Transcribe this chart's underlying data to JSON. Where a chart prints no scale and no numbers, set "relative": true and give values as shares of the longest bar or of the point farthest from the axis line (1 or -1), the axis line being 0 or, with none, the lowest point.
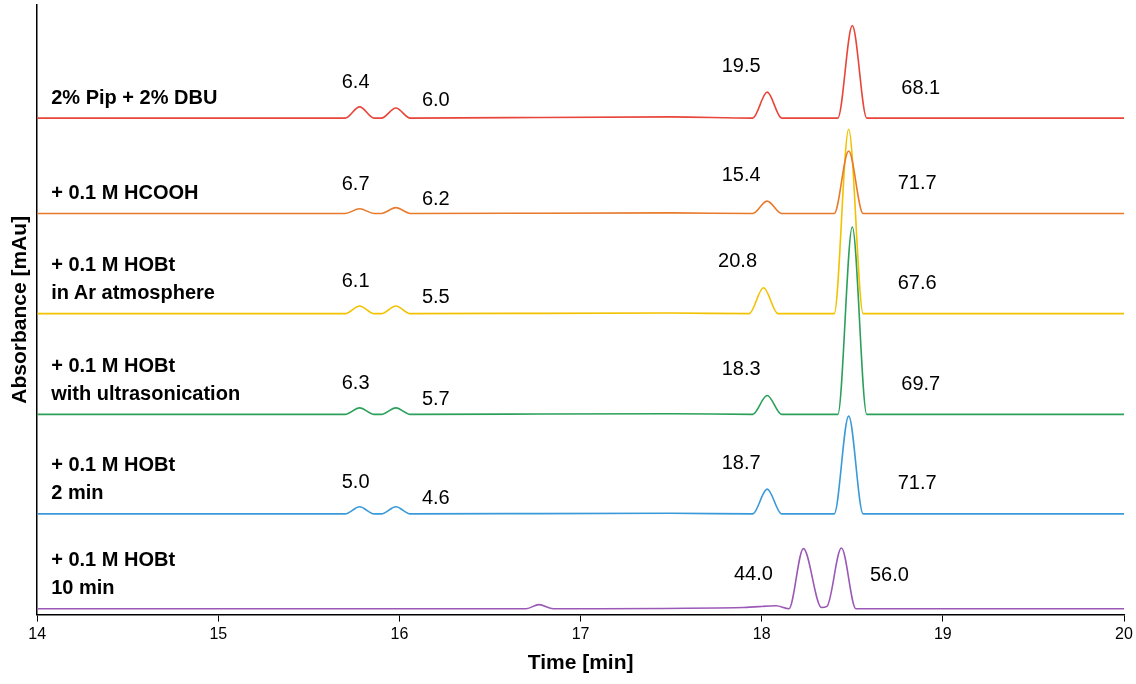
{
  "chart_data": {
    "type": "line",
    "relative": true,
    "xlabel": "Time [min]",
    "ylabel": "Absorbance [mAu]",
    "xlim": [
      14,
      20
    ],
    "xticks": [
      14,
      15,
      16,
      17,
      18,
      19,
      20
    ],
    "grid": false,
    "legend": false,
    "marker": "none",
    "series": [
      {
        "name": "2% Pip + 2% DBU",
        "color": "#e8463a",
        "x": [
          14,
          15.7,
          15.78,
          15.86,
          15.9,
          15.98,
          16.06,
          17.5,
          17.95,
          18.03,
          18.11,
          18.42,
          18.5,
          18.58,
          20
        ],
        "values": [
          0.843,
          0.843,
          0.862,
          0.843,
          0.843,
          0.86,
          0.843,
          0.845,
          0.843,
          0.887,
          0.843,
          0.843,
          1.0,
          0.843,
          0.843
        ]
      },
      {
        "name": "+ 0.1 M HCOOH",
        "color": "#e87a2c",
        "x": [
          14,
          15.7,
          15.78,
          15.86,
          15.9,
          15.98,
          16.06,
          17.5,
          17.95,
          18.03,
          18.11,
          18.4,
          18.48,
          18.56,
          20
        ],
        "values": [
          0.681,
          0.681,
          0.689,
          0.681,
          0.681,
          0.691,
          0.681,
          0.682,
          0.681,
          0.702,
          0.681,
          0.681,
          0.787,
          0.681,
          0.681
        ]
      },
      {
        "name": "+ 0.1 M HOBt\nin Ar atmosphere",
        "color": "#f2c200",
        "x": [
          14,
          15.7,
          15.78,
          15.86,
          15.9,
          15.98,
          16.06,
          17.5,
          17.93,
          18.01,
          18.09,
          18.4,
          18.48,
          18.56,
          20
        ],
        "values": [
          0.511,
          0.511,
          0.524,
          0.511,
          0.511,
          0.524,
          0.511,
          0.512,
          0.511,
          0.555,
          0.511,
          0.511,
          0.824,
          0.511,
          0.511
        ]
      },
      {
        "name": "+ 0.1 M HOBt\nwith ultrasonication",
        "color": "#2ca05a",
        "x": [
          14,
          15.7,
          15.78,
          15.86,
          15.9,
          15.98,
          16.06,
          17.5,
          17.95,
          18.03,
          18.11,
          18.42,
          18.5,
          18.58,
          20
        ],
        "values": [
          0.34,
          0.34,
          0.351,
          0.34,
          0.34,
          0.351,
          0.34,
          0.341,
          0.34,
          0.372,
          0.34,
          0.34,
          0.658,
          0.34,
          0.34
        ]
      },
      {
        "name": "+ 0.1 M HOBt\n2 min",
        "color": "#3a9ad9",
        "x": [
          14,
          15.7,
          15.78,
          15.86,
          15.9,
          15.98,
          16.06,
          17.5,
          17.95,
          18.03,
          18.11,
          18.4,
          18.48,
          18.56,
          20
        ],
        "values": [
          0.171,
          0.171,
          0.183,
          0.171,
          0.171,
          0.183,
          0.171,
          0.172,
          0.171,
          0.213,
          0.171,
          0.171,
          0.337,
          0.171,
          0.171
        ]
      },
      {
        "name": "+ 0.1 M HOBt\n10 min",
        "color": "#9b59b6",
        "x": [
          14,
          16.7,
          16.77,
          16.85,
          17.9,
          18.08,
          18.15,
          18.23,
          18.33,
          18.36,
          18.44,
          18.52,
          18.6,
          20
        ],
        "values": [
          0.01,
          0.01,
          0.017,
          0.01,
          0.012,
          0.015,
          0.01,
          0.112,
          0.012,
          0.014,
          0.113,
          0.01,
          0.01,
          0.01
        ]
      }
    ],
    "annotations": [
      {
        "text": "6.4",
        "x": 15.78,
        "y": 0.862
      },
      {
        "text": "6.0",
        "x": 15.98,
        "y": 0.86
      },
      {
        "text": "19.5",
        "x": 18.03,
        "y": 0.887
      },
      {
        "text": "68.1",
        "x": 18.58,
        "y": 0.843
      },
      {
        "text": "6.7",
        "x": 15.78,
        "y": 0.689
      },
      {
        "text": "6.2",
        "x": 15.98,
        "y": 0.691
      },
      {
        "text": "15.4",
        "x": 18.03,
        "y": 0.702
      },
      {
        "text": "71.7",
        "x": 18.56,
        "y": 0.681
      },
      {
        "text": "6.1",
        "x": 15.78,
        "y": 0.524
      },
      {
        "text": "5.5",
        "x": 15.98,
        "y": 0.524
      },
      {
        "text": "20.8",
        "x": 18.01,
        "y": 0.555
      },
      {
        "text": "67.6",
        "x": 18.56,
        "y": 0.511
      },
      {
        "text": "6.3",
        "x": 15.78,
        "y": 0.351
      },
      {
        "text": "5.7",
        "x": 15.98,
        "y": 0.351
      },
      {
        "text": "18.3",
        "x": 18.03,
        "y": 0.372
      },
      {
        "text": "69.7",
        "x": 18.58,
        "y": 0.34
      },
      {
        "text": "5.0",
        "x": 15.78,
        "y": 0.183
      },
      {
        "text": "4.6",
        "x": 15.98,
        "y": 0.183
      },
      {
        "text": "18.7",
        "x": 18.03,
        "y": 0.213
      },
      {
        "text": "71.7",
        "x": 18.56,
        "y": 0.171
      },
      {
        "text": "44.0",
        "x": 18.23,
        "y": 0.112
      },
      {
        "text": "56.0",
        "x": 18.44,
        "y": 0.113
      }
    ]
  }
}
